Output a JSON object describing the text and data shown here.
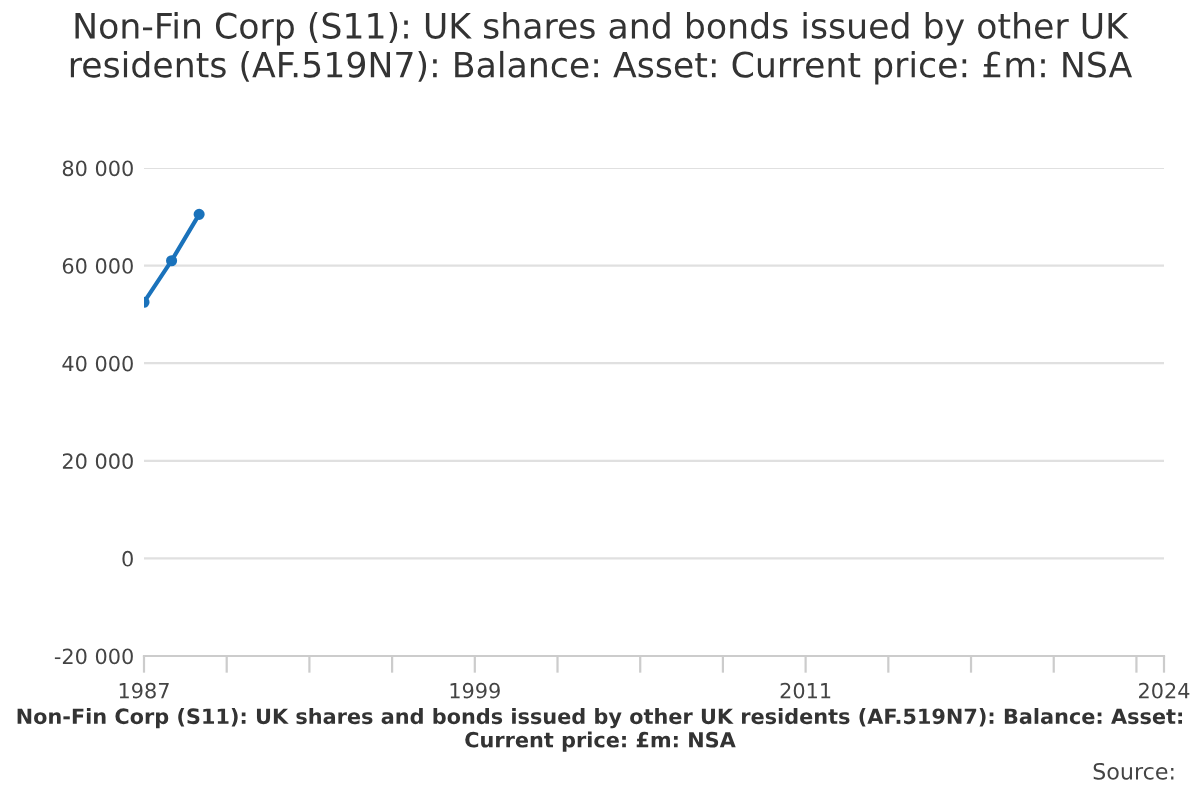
{
  "chart_data": {
    "type": "line",
    "title": "Non-Fin Corp (S11): UK shares and bonds issued by other UK residents (AF.519N7): Balance: Asset: Current price: £m: NSA",
    "xlabel": "Non-Fin Corp (S11): UK shares and bonds issued by other UK residents (AF.519N7): Balance: Asset: Current price: £m: NSA",
    "annotations": [
      "Source:"
    ],
    "x": [
      1987,
      1988,
      1989
    ],
    "series": [
      {
        "color": "#1a72bb",
        "values": [
          52500,
          61000,
          70500
        ]
      }
    ],
    "xlim": [
      1987,
      2024
    ],
    "xticks": [
      1987,
      {
        "value": 1990,
        "label": null
      },
      {
        "value": 1993,
        "label": null
      },
      {
        "value": 1996,
        "label": null
      },
      1999,
      {
        "value": 2002,
        "label": null
      },
      {
        "value": 2005,
        "label": null
      },
      {
        "value": 2008,
        "label": null
      },
      2011,
      {
        "value": 2014,
        "label": null
      },
      {
        "value": 2017,
        "label": null
      },
      {
        "value": 2020,
        "label": null
      },
      {
        "value": 2023,
        "label": null
      },
      2024
    ],
    "ylim": [
      -20000,
      80000
    ],
    "yticks": [
      {
        "value": -20000,
        "label": "-20 000"
      },
      {
        "value": 0,
        "label": "0"
      },
      {
        "value": 20000,
        "label": "20 000"
      },
      {
        "value": 40000,
        "label": "40 000"
      },
      {
        "value": 60000,
        "label": "60 000"
      },
      {
        "value": 80000,
        "label": "80 000"
      }
    ],
    "grid": "y",
    "marker": "circle",
    "line_style": "solid",
    "legend": false
  }
}
